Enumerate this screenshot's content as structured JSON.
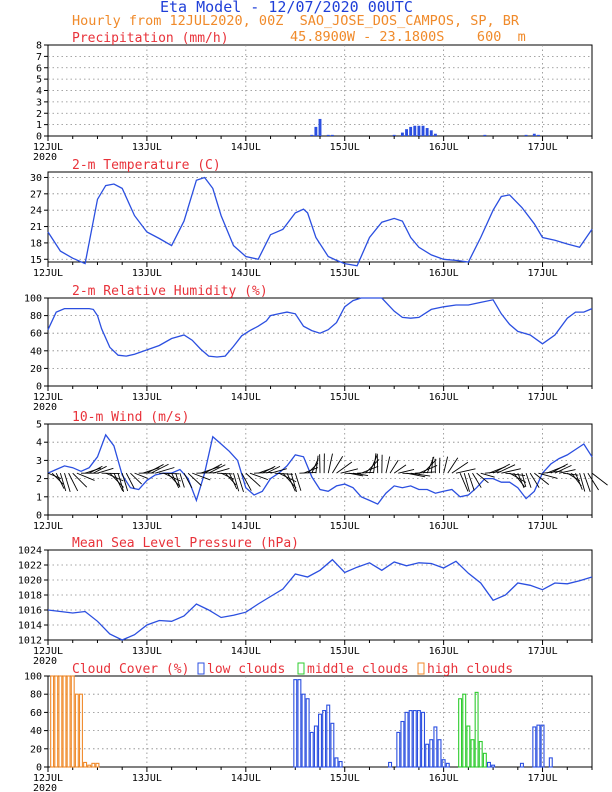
{
  "header": {
    "title": "Eta Model - 12/07/2020 00UTC",
    "line1": "Hourly from 12JUL2020, 00Z  SAO_JOSE_DOS_CAMPOS, SP, BR",
    "line2": "45.8900W - 23.1800S    600  m"
  },
  "colors": {
    "line": "#2b4fe0",
    "title": "#e8323a",
    "header_title": "#1f3fd8",
    "header_sub": "#f08a2a",
    "low": "#2b4fe0",
    "middle": "#2ecc2e",
    "high": "#f08a2a",
    "wind": "#000000"
  },
  "x_axis": {
    "day_labels": [
      "12JUL",
      "13JUL",
      "14JUL",
      "15JUL",
      "16JUL",
      "17JUL"
    ],
    "year_label": "2020",
    "hours": 132
  },
  "chart_data": [
    {
      "type": "bar",
      "title": "Precipitation (mm/h)",
      "ylim": [
        0,
        8
      ],
      "yticks": [
        0,
        1,
        2,
        3,
        4,
        5,
        6,
        7,
        8
      ],
      "x_hours": [
        64,
        65,
        66,
        68,
        69,
        84,
        86,
        87,
        88,
        89,
        90,
        91,
        92,
        93,
        94,
        106,
        116,
        118,
        119
      ],
      "values": [
        0.1,
        0.8,
        1.5,
        0.1,
        0.1,
        0.1,
        0.3,
        0.6,
        0.8,
        0.9,
        0.9,
        0.9,
        0.7,
        0.5,
        0.2,
        0.1,
        0.1,
        0.2,
        0.1
      ]
    },
    {
      "type": "line",
      "title": "2-m Temperature (C)",
      "ylim": [
        14.5,
        31
      ],
      "yticks": [
        15,
        18,
        21,
        24,
        27,
        30
      ],
      "x_hours": [
        0,
        3,
        6,
        9,
        12,
        14,
        16,
        18,
        21,
        24,
        27,
        30,
        33,
        36,
        38,
        40,
        42,
        45,
        48,
        51,
        54,
        57,
        60,
        62,
        63,
        65,
        68,
        70,
        72,
        75,
        78,
        81,
        84,
        86,
        88,
        90,
        93,
        96,
        99,
        102,
        105,
        108,
        110,
        112,
        115,
        118,
        120,
        123,
        126,
        129,
        132
      ],
      "values": [
        20,
        16.5,
        15.2,
        14.2,
        26,
        28.5,
        28.8,
        28,
        23,
        20,
        18.8,
        17.5,
        22,
        29.5,
        30,
        28,
        23,
        17.5,
        15.5,
        15,
        19.5,
        20.5,
        23.5,
        24.2,
        23.5,
        19,
        15.5,
        14.8,
        14.2,
        13.8,
        19,
        21.8,
        22.5,
        22,
        19,
        17.2,
        15.8,
        15,
        14.8,
        14.5,
        19,
        24,
        26.5,
        26.8,
        24.5,
        21.5,
        19,
        18.5,
        17.8,
        17.2,
        20.5
      ]
    },
    {
      "type": "line",
      "title": "2-m Relative Humidity (%)",
      "ylim": [
        0,
        100
      ],
      "yticks": [
        0,
        20,
        40,
        60,
        80,
        100
      ],
      "x_hours": [
        0,
        2,
        4,
        6,
        8,
        10,
        11,
        12,
        13,
        15,
        17,
        19,
        21,
        24,
        27,
        30,
        33,
        35,
        37,
        39,
        41,
        43,
        45,
        47,
        49,
        51,
        53,
        54,
        56,
        58,
        60,
        62,
        64,
        66,
        68,
        70,
        72,
        74,
        76,
        78,
        81,
        84,
        86,
        88,
        90,
        93,
        96,
        99,
        102,
        105,
        108,
        110,
        112,
        114,
        117,
        120,
        123,
        126,
        128,
        130,
        132
      ],
      "values": [
        64,
        84,
        88,
        88,
        88,
        88,
        87,
        80,
        65,
        44,
        35,
        34,
        36,
        41,
        46,
        54,
        58,
        52,
        42,
        34,
        33,
        34,
        45,
        57,
        63,
        68,
        74,
        80,
        82,
        84,
        82,
        68,
        63,
        60,
        64,
        72,
        90,
        97,
        100,
        100,
        100,
        85,
        78,
        77,
        78,
        87,
        90,
        92,
        92,
        95,
        98,
        82,
        70,
        62,
        58,
        48,
        58,
        77,
        84,
        84,
        88
      ]
    },
    {
      "type": "line",
      "title": "10-m Wind (m/s)",
      "ylim": [
        0,
        5
      ],
      "yticks": [
        0,
        1,
        2,
        3,
        4,
        5
      ],
      "x_hours": [
        0,
        2,
        4,
        6,
        8,
        10,
        12,
        14,
        16,
        18,
        20,
        22,
        24,
        26,
        28,
        30,
        32,
        34,
        36,
        38,
        40,
        42,
        44,
        46,
        48,
        50,
        52,
        54,
        56,
        58,
        60,
        62,
        64,
        66,
        68,
        70,
        72,
        74,
        76,
        78,
        80,
        82,
        84,
        86,
        88,
        90,
        92,
        94,
        96,
        98,
        100,
        102,
        104,
        106,
        108,
        110,
        112,
        114,
        116,
        118,
        120,
        122,
        124,
        126,
        128,
        130,
        132
      ],
      "values": [
        2.3,
        2.5,
        2.7,
        2.6,
        2.4,
        2.6,
        3.2,
        4.4,
        3.8,
        2.2,
        1.5,
        1.4,
        1.9,
        2.2,
        2.3,
        2.3,
        2.5,
        2.0,
        0.8,
        2.3,
        4.3,
        3.9,
        3.5,
        3.0,
        1.5,
        1.1,
        1.3,
        2.0,
        2.3,
        2.7,
        3.3,
        3.2,
        2.1,
        1.4,
        1.3,
        1.6,
        1.7,
        1.5,
        1.0,
        0.8,
        0.6,
        1.2,
        1.6,
        1.5,
        1.6,
        1.4,
        1.4,
        1.2,
        1.3,
        1.4,
        1.0,
        1.1,
        1.5,
        2.0,
        2.0,
        1.8,
        1.8,
        1.5,
        0.9,
        1.3,
        2.3,
        2.8,
        3.1,
        3.3,
        3.6,
        3.9,
        3.2
      ]
    },
    {
      "type": "line",
      "title": "Mean Sea Level Pressure (hPa)",
      "ylim": [
        1012,
        1024
      ],
      "yticks": [
        1012,
        1014,
        1016,
        1018,
        1020,
        1022,
        1024
      ],
      "x_hours": [
        0,
        3,
        6,
        9,
        12,
        15,
        18,
        21,
        24,
        27,
        30,
        33,
        36,
        39,
        42,
        45,
        48,
        51,
        54,
        57,
        60,
        63,
        66,
        69,
        72,
        75,
        78,
        81,
        84,
        87,
        90,
        93,
        96,
        99,
        102,
        105,
        108,
        111,
        114,
        117,
        120,
        123,
        126,
        129,
        132
      ],
      "values": [
        1016,
        1015.8,
        1015.6,
        1015.8,
        1014.5,
        1012.8,
        1012,
        1012.7,
        1014,
        1014.6,
        1014.5,
        1015.2,
        1016.8,
        1016,
        1015,
        1015.3,
        1015.7,
        1016.8,
        1017.8,
        1018.8,
        1020.8,
        1020.4,
        1021.3,
        1022.7,
        1021,
        1021.7,
        1022.3,
        1021.3,
        1022.4,
        1021.9,
        1022.3,
        1022.2,
        1021.6,
        1022.5,
        1020.9,
        1019.6,
        1017.3,
        1018,
        1019.6,
        1019.3,
        1018.7,
        1019.6,
        1019.5,
        1019.9,
        1020.4
      ]
    },
    {
      "type": "bar",
      "title": "Cloud Cover (%)",
      "ylim": [
        0,
        100
      ],
      "yticks": [
        0,
        20,
        40,
        60,
        80,
        100
      ],
      "legend": [
        "low clouds",
        "middle clouds",
        "high clouds"
      ],
      "series": [
        {
          "name": "low clouds",
          "x_hours": [
            60,
            61,
            62,
            63,
            64,
            65,
            66,
            67,
            68,
            69,
            70,
            71,
            83,
            85,
            86,
            87,
            88,
            89,
            90,
            91,
            92,
            93,
            94,
            95,
            96,
            97,
            107,
            108,
            115,
            118,
            119,
            120,
            122
          ],
          "values": [
            96,
            96,
            80,
            75,
            38,
            45,
            58,
            62,
            68,
            48,
            10,
            6,
            5,
            38,
            50,
            60,
            62,
            62,
            62,
            60,
            25,
            30,
            44,
            30,
            8,
            4,
            5,
            2,
            4,
            44,
            46,
            46,
            10
          ]
        },
        {
          "name": "middle clouds",
          "x_hours": [
            100,
            101,
            102,
            103,
            104,
            105,
            106
          ],
          "values": [
            75,
            80,
            45,
            30,
            82,
            28,
            15
          ]
        },
        {
          "name": "high clouds",
          "x_hours": [
            1,
            2,
            3,
            4,
            5,
            6,
            7,
            8,
            9,
            10,
            11,
            12
          ],
          "values": [
            100,
            100,
            100,
            100,
            100,
            100,
            80,
            80,
            5,
            2,
            4,
            4
          ]
        }
      ]
    }
  ]
}
